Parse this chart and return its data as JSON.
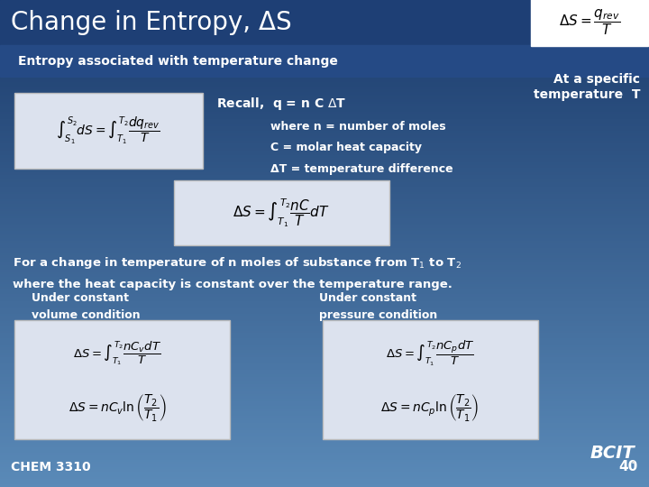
{
  "title": "Change in Entropy, ΔS",
  "subtitle": "Entropy associated with temperature change",
  "right_note": "At a specific\ntemperature  T",
  "bg_color_top": "#1a3a6b",
  "bg_color_bottom": "#5a8ab8",
  "title_color": "#ffffff",
  "text_color": "#ffffff",
  "box_bg": "#eef0f5",
  "slide_number": "40",
  "course": "CHEM 3310",
  "recall_text": "Recall,  q = n C ΔT",
  "where_lines": [
    "where n = number of moles",
    "C = molar heat capacity",
    "ΔT = temperature difference"
  ],
  "label_cv": "Under constant\nvolume condition",
  "label_cp": "Under constant\npressure condition"
}
